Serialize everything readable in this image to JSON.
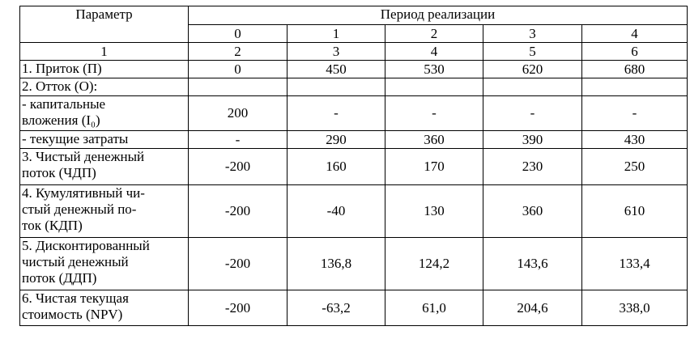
{
  "table": {
    "header": {
      "param_label": "Параметр",
      "period_label": "Период реализации",
      "periods": [
        "0",
        "1",
        "2",
        "3",
        "4"
      ]
    },
    "column_numbers": [
      "1",
      "2",
      "3",
      "4",
      "5",
      "6"
    ],
    "rows": [
      {
        "label": "1. Приток (П)",
        "values": [
          "0",
          "450",
          "530",
          "620",
          "680"
        ]
      },
      {
        "label": "2. Отток (О):",
        "values": [
          "",
          "",
          "",
          "",
          ""
        ]
      },
      {
        "label": "- капитальные\nвложения (I₀)",
        "values": [
          "200",
          "-",
          "-",
          "-",
          "-"
        ]
      },
      {
        "label": "- текущие затраты",
        "values": [
          "-",
          "290",
          "360",
          "390",
          "430"
        ]
      },
      {
        "label": "3. Чистый денежный\nпоток (ЧДП)",
        "values": [
          "-200",
          "160",
          "170",
          "230",
          "250"
        ]
      },
      {
        "label": "4. Кумулятивный чи-\nстый денежный по-\nток (КДП)",
        "values": [
          "-200",
          "-40",
          "130",
          "360",
          "610"
        ]
      },
      {
        "label": "5. Дисконтированный\nчистый денежный\nпоток (ДДП)",
        "values": [
          "-200",
          "136,8",
          "124,2",
          "143,6",
          "133,4"
        ]
      },
      {
        "label": "6. Чистая текущая\nстоимость (NPV)",
        "values": [
          "-200",
          "-63,2",
          "61,0",
          "204,6",
          "338,0"
        ]
      }
    ]
  }
}
